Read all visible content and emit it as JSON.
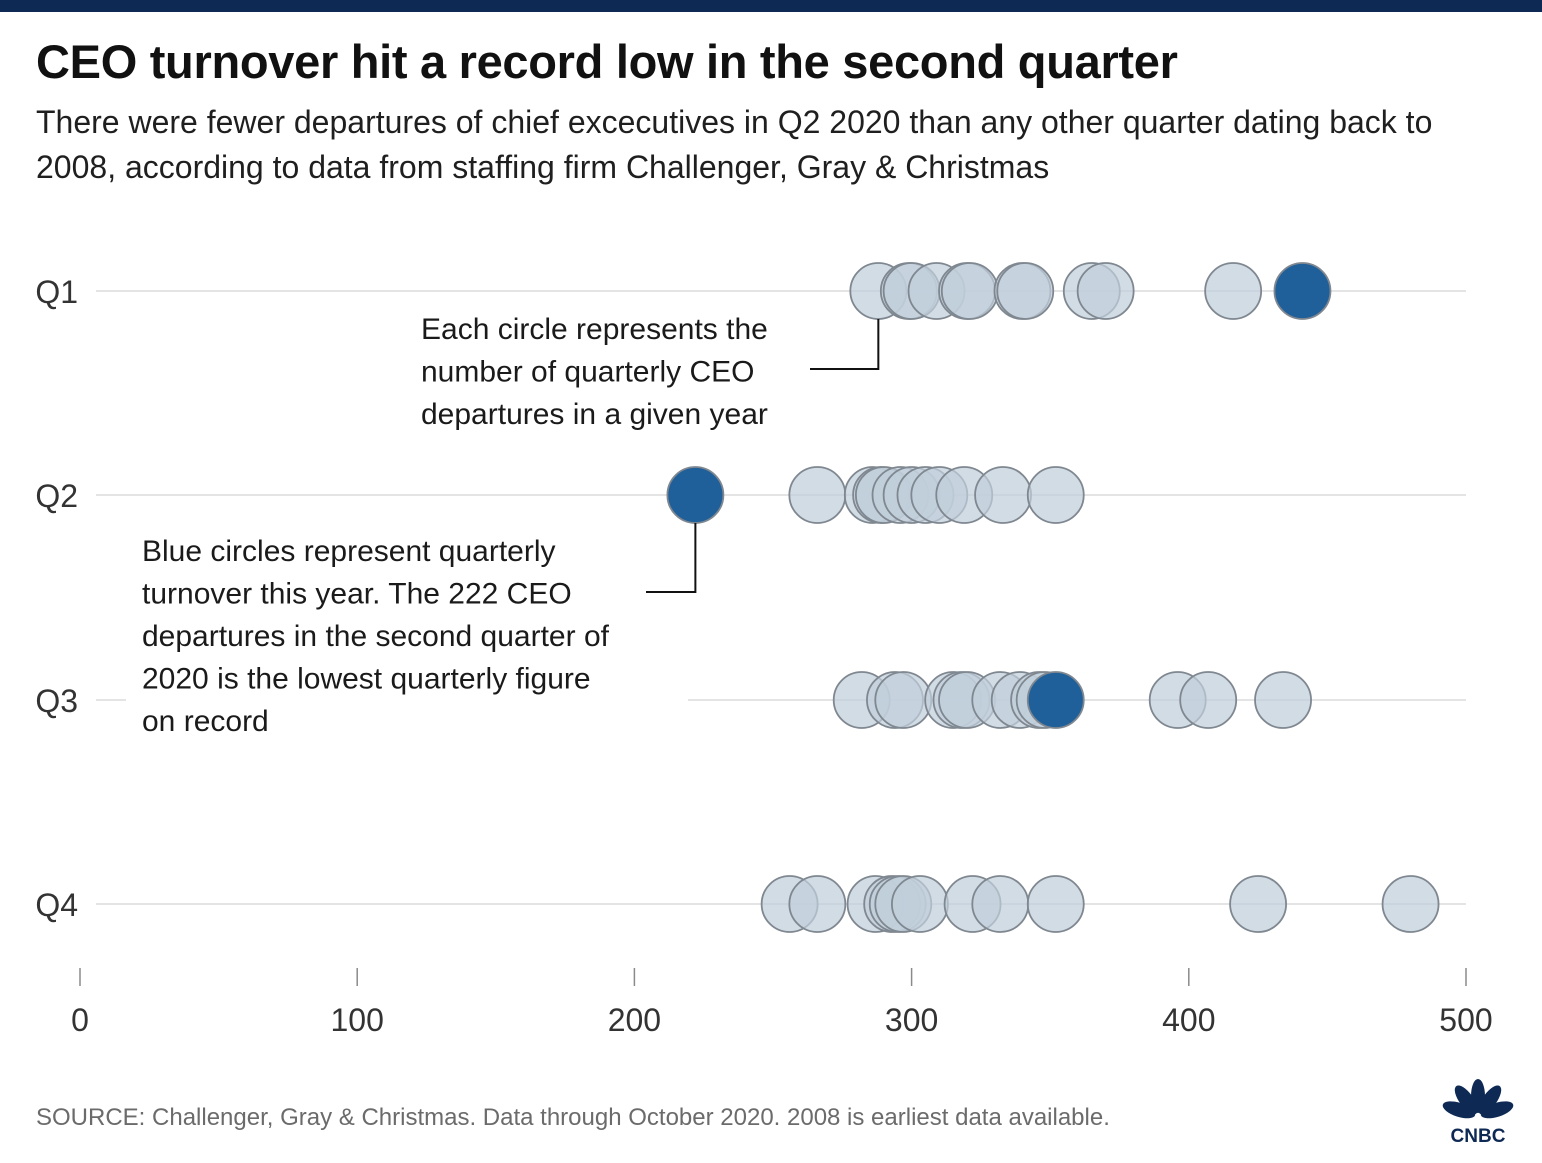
{
  "title": "CEO turnover hit a record low in the second quarter",
  "subtitle": "There were fewer departures of chief excecutives in Q2 2020 than any other quarter dating back to 2008, according to data from staffing firm Challenger, Gray & Christmas",
  "source": "SOURCE: Challenger, Gray & Christmas. Data through October 2020. 2008 is earliest data available.",
  "logo_text": "CNBC",
  "colors": {
    "past": "#c0cedb",
    "current": "#1f5f9a",
    "stroke": "#7f8790",
    "header_bar": "#0e2a54"
  },
  "chart_data": {
    "type": "scatter",
    "xlim": [
      0,
      500
    ],
    "xticks": [
      0,
      100,
      200,
      300,
      400,
      500
    ],
    "categories": [
      "Q1",
      "Q2",
      "Q3",
      "Q4"
    ],
    "series": [
      {
        "category": "Q1",
        "past": [
          288,
          299,
          300,
          309,
          320,
          321,
          340,
          341,
          365,
          370,
          416
        ],
        "current": [
          441
        ]
      },
      {
        "category": "Q2",
        "past": [
          266,
          286,
          289,
          290,
          296,
          300,
          305,
          310,
          319,
          333,
          352
        ],
        "current": [
          222
        ]
      },
      {
        "category": "Q3",
        "past": [
          282,
          294,
          297,
          315,
          318,
          320,
          332,
          339,
          346,
          348,
          396,
          407,
          434
        ],
        "current": [
          352
        ]
      },
      {
        "category": "Q4",
        "past": [
          256,
          266,
          287,
          293,
          295,
          297,
          303,
          322,
          332,
          352,
          425,
          480
        ],
        "current": []
      }
    ],
    "annotations": [
      {
        "lines": [
          "Each circle represents the",
          "number of quarterly CEO",
          "departures in a given year"
        ]
      },
      {
        "lines": [
          "Blue circles represent quarterly",
          "turnover this year. The 222 CEO",
          "departures in the second quarter of",
          "2020 is the lowest quarterly figure",
          "on record"
        ]
      }
    ]
  }
}
